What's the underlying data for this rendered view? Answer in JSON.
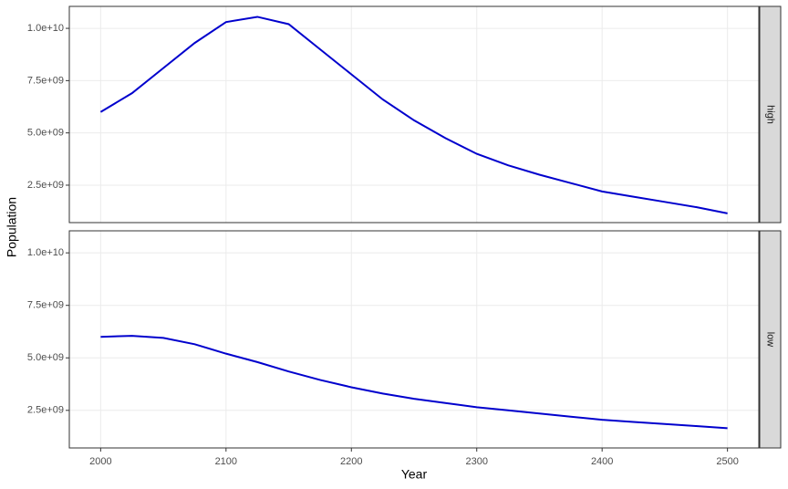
{
  "chart_data": {
    "type": "line",
    "facets": true,
    "grid": true,
    "xlabel": "Year",
    "ylabel": "Population",
    "x": [
      2000,
      2025,
      2050,
      2075,
      2100,
      2125,
      2150,
      2175,
      2200,
      2225,
      2250,
      2275,
      2300,
      2325,
      2350,
      2375,
      2400,
      2425,
      2450,
      2475,
      2500
    ],
    "xlim": [
      1975,
      2525
    ],
    "xticks": [
      2000,
      2100,
      2200,
      2300,
      2400,
      2500
    ],
    "ylim": [
      710000000,
      11050000000
    ],
    "yticks": [
      {
        "value": 2500000000,
        "label": "2.5e+09"
      },
      {
        "value": 5000000000,
        "label": "5.0e+09"
      },
      {
        "value": 7500000000,
        "label": "7.5e+09"
      },
      {
        "value": 10000000000,
        "label": "1.0e+10"
      }
    ],
    "series": [
      {
        "name": "high",
        "color": "#0000cd",
        "values": [
          6000000000,
          6900000000,
          8100000000,
          9300000000,
          10300000000,
          10550000000,
          10200000000,
          9000000000,
          7800000000,
          6600000000,
          5600000000,
          4750000000,
          4000000000,
          3450000000,
          3000000000,
          2600000000,
          2200000000,
          1950000000,
          1700000000,
          1450000000,
          1150000000
        ]
      },
      {
        "name": "low",
        "color": "#0000cd",
        "values": [
          6000000000,
          6050000000,
          5950000000,
          5650000000,
          5200000000,
          4800000000,
          4350000000,
          3950000000,
          3600000000,
          3300000000,
          3050000000,
          2850000000,
          2650000000,
          2500000000,
          2350000000,
          2200000000,
          2050000000,
          1950000000,
          1850000000,
          1750000000,
          1650000000
        ]
      }
    ]
  }
}
